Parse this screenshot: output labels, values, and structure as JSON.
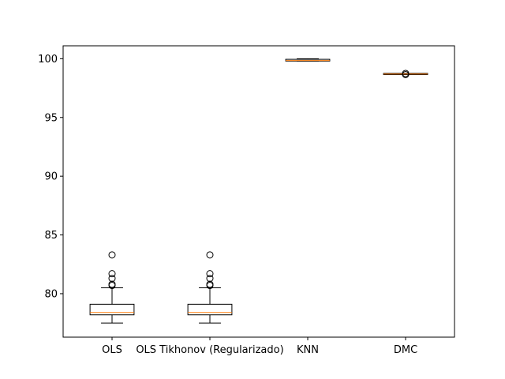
{
  "chart_data": {
    "type": "box",
    "title": "",
    "xlabel": "",
    "ylabel": "",
    "categories": [
      "OLS",
      "OLS Tikhonov (Regularizado)",
      "KNN",
      "DMC"
    ],
    "ylim": [
      76.3,
      101.1
    ],
    "yticks": [
      80,
      85,
      90,
      95,
      100
    ],
    "grid": false,
    "colors": {
      "box": "#000000",
      "median": "#ff7f0e",
      "background": "#ffffff"
    },
    "boxes": [
      {
        "whisker_low": 77.5,
        "q1": 78.2,
        "median": 78.4,
        "q3": 79.1,
        "whisker_high": 80.5,
        "outliers": [
          80.7,
          80.8,
          81.3,
          81.7,
          83.3
        ]
      },
      {
        "whisker_low": 77.5,
        "q1": 78.2,
        "median": 78.4,
        "q3": 79.1,
        "whisker_high": 80.5,
        "outliers": [
          80.7,
          80.8,
          81.3,
          81.7,
          83.3
        ]
      },
      {
        "whisker_low": 99.8,
        "q1": 99.8,
        "median": 99.85,
        "q3": 99.95,
        "whisker_high": 100.0,
        "outliers": []
      },
      {
        "whisker_low": 98.7,
        "q1": 98.7,
        "median": 98.7,
        "q3": 98.75,
        "whisker_high": 98.75,
        "outliers": [
          98.65,
          98.75
        ]
      }
    ]
  }
}
